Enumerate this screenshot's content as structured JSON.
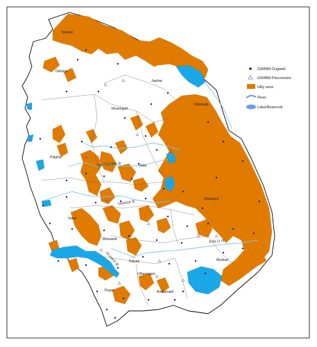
{
  "colors": {
    "hilly": "#e07b00",
    "lake": "#1aa7e8",
    "river": "#7fc4e8",
    "border": "#000000",
    "taluka": "#555555",
    "dugwell": "#1a1a8a",
    "piezometre": "#7a3fa0",
    "legend_river": "#4a78d8",
    "legend_lake": "#6a9ee8"
  },
  "legend": {
    "dugwell": "GWMW-Dugwell",
    "piezometre": "GWMW-Piezometre",
    "hilly": "Hilly area",
    "river": "River",
    "lake": "Lake/Reservoir"
  },
  "places": {
    "talasari": "Talasari",
    "dahanu": "Dahanu",
    "jawhar": "Jawhar",
    "mokhada": "Mokhada",
    "vikramgad": "Vikramgad",
    "palghar": "Palghar",
    "vada": "Vada",
    "shahapur": "Shahapur",
    "vasai": "Vasai",
    "bhiwandi": "Bhiwandi",
    "kalyan": "Kalyan",
    "ulhasnagar": "Ulhasnagar",
    "murbad": "Murbad",
    "thane": "Thane",
    "ambarnath": "Ambarnath"
  },
  "rivers": {
    "vaitarna": "VAITARNA R",
    "tansa": "TANSA R",
    "kalu": "KALU R",
    "ulhas": "ULHAS R"
  },
  "markers": {
    "dugwell_count": 58,
    "piezometre_count": 14
  }
}
